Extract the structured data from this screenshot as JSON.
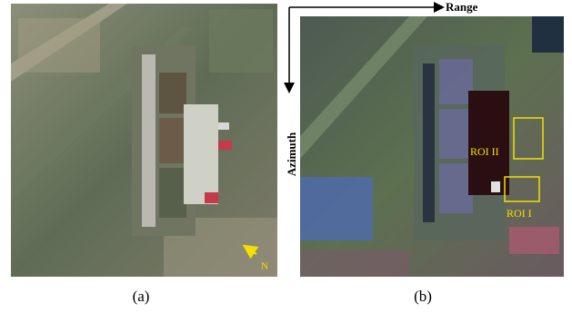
{
  "panels": [
    {
      "caption": "(a)",
      "north_label": "N"
    },
    {
      "caption": "(b)",
      "range_label": "Range",
      "azimuth_label": "Azimuth",
      "rois": [
        "ROI II",
        "ROI I"
      ]
    }
  ]
}
